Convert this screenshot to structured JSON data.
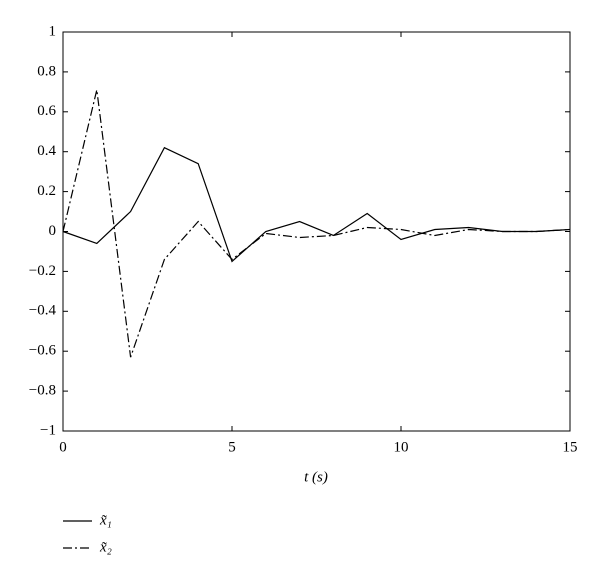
{
  "chart_data": {
    "type": "line",
    "x_label": "t (s)",
    "x": [
      0,
      1,
      2,
      3,
      4,
      5,
      6,
      7,
      8,
      9,
      10,
      11,
      12,
      13,
      14,
      15
    ],
    "series": [
      {
        "name": "x̃₁",
        "color": "#000000",
        "style": "solid",
        "values": [
          0,
          -0.06,
          0.1,
          0.42,
          0.34,
          -0.15,
          0,
          0.05,
          -0.02,
          0.09,
          -0.04,
          0.01,
          0.02,
          0,
          0,
          0.01
        ]
      },
      {
        "name": "x̃₂",
        "color": "#000000",
        "style": "dashdot",
        "values": [
          0,
          0.71,
          -0.63,
          -0.14,
          0.05,
          -0.14,
          -0.01,
          -0.03,
          -0.02,
          0.02,
          0.01,
          -0.02,
          0.01,
          0,
          0,
          0.01
        ]
      }
    ],
    "xlim": [
      0,
      15
    ],
    "xticks": [
      0,
      5,
      10,
      15
    ],
    "ylim": [
      -1,
      1
    ],
    "yticks": [
      {
        "value": -1,
        "label": "−1"
      },
      {
        "value": -0.8,
        "label": "−0.8"
      },
      {
        "value": -0.6,
        "label": "−0.6"
      },
      {
        "value": -0.4,
        "label": "−0.4"
      },
      {
        "value": -0.2,
        "label": "−0.2"
      },
      0,
      0.2,
      0.4,
      0.6,
      0.8,
      1
    ],
    "grid": false,
    "legend": "below"
  }
}
